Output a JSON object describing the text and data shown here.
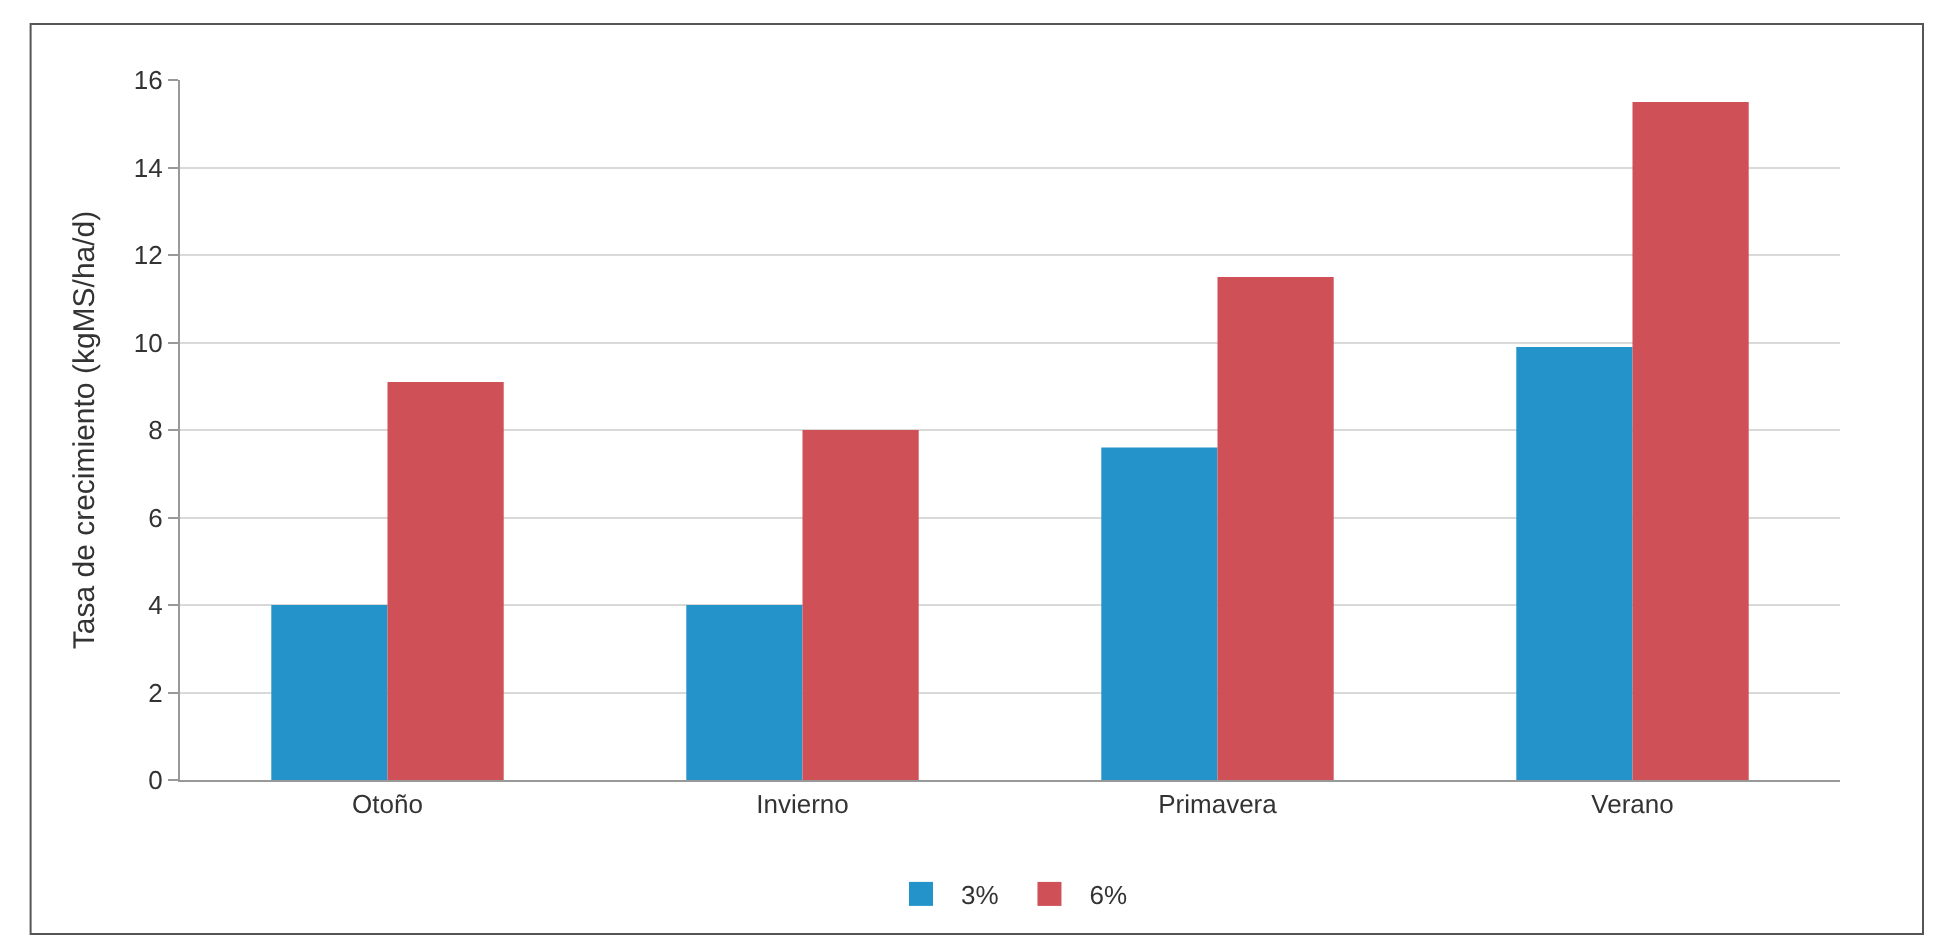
{
  "chart_data": {
    "type": "bar",
    "ylabel": "Tasa de crecimiento (kgMS/ha/d)",
    "categories": [
      "Otoño",
      "Invierno",
      "Primavera",
      "Verano"
    ],
    "series": [
      {
        "name": "3%",
        "color": "#2493c9",
        "values": [
          4.0,
          4.0,
          7.6,
          9.9
        ]
      },
      {
        "name": "6%",
        "color": "#cf5057",
        "values": [
          9.1,
          8.0,
          11.5,
          15.5
        ]
      }
    ],
    "ylim": [
      0,
      16
    ],
    "yticks": [
      0,
      2,
      4,
      6,
      8,
      10,
      12,
      14,
      16
    ],
    "grid": "y",
    "legend": "bottom"
  }
}
